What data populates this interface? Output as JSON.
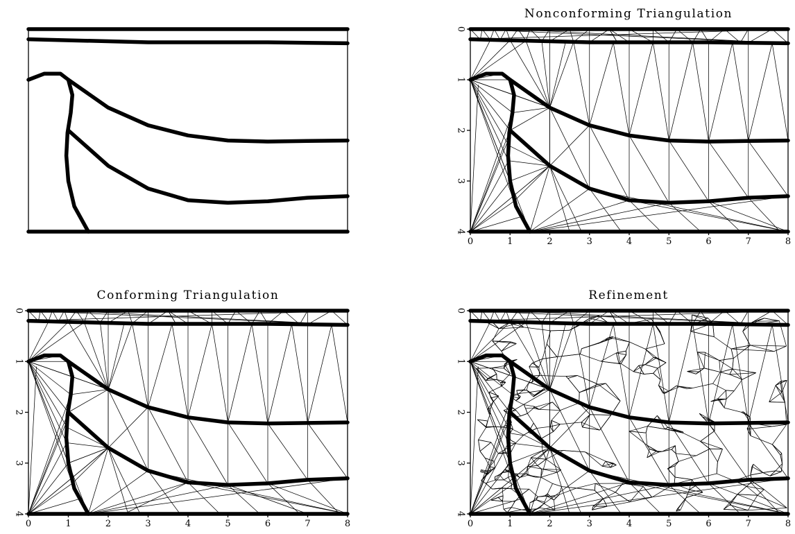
{
  "figure": {
    "panels": [
      {
        "id": "model",
        "title": "",
        "axes": false,
        "mesh": "none"
      },
      {
        "id": "nonconforming",
        "title": "Nonconforming Triangulation",
        "axes": true,
        "mesh": "nonconforming"
      },
      {
        "id": "conforming",
        "title": "Conforming Triangulation",
        "axes": true,
        "mesh": "conforming"
      },
      {
        "id": "refinement",
        "title": "Refinement",
        "axes": true,
        "mesh": "refinement"
      }
    ],
    "x_ticks": [
      "0",
      "1",
      "2",
      "3",
      "4",
      "5",
      "6",
      "7",
      "8"
    ],
    "y_ticks": [
      "0",
      "1",
      "2",
      "3",
      "4"
    ]
  },
  "chart_data": {
    "type": "line",
    "xlim": [
      0,
      8
    ],
    "ylim": [
      4,
      0
    ],
    "x_tick_labels": [
      "0",
      "1",
      "2",
      "3",
      "4",
      "5",
      "6",
      "7",
      "8"
    ],
    "y_tick_labels": [
      "0",
      "1",
      "2",
      "3",
      "4"
    ],
    "series": [
      {
        "x": [
          0,
          8
        ],
        "y": [
          0,
          0
        ]
      },
      {
        "x": [
          0,
          1,
          2,
          3,
          4,
          5,
          6,
          7,
          8
        ],
        "y": [
          0.2,
          0.22,
          0.24,
          0.26,
          0.26,
          0.26,
          0.26,
          0.27,
          0.28
        ]
      },
      {
        "x": [
          0,
          0.4,
          0.8,
          1.0,
          2.0,
          3.0,
          4.0,
          5.0,
          6.0,
          7.0,
          8.0
        ],
        "y": [
          1.0,
          0.88,
          0.88,
          1.0,
          1.55,
          1.9,
          2.1,
          2.2,
          2.22,
          2.21,
          2.2
        ]
      },
      {
        "x": [
          1.0,
          2.0,
          3.0,
          4.0,
          5.0,
          6.0,
          7.0,
          8.0
        ],
        "y": [
          2.0,
          2.7,
          3.15,
          3.38,
          3.43,
          3.4,
          3.33,
          3.3
        ]
      },
      {
        "x": [
          1.0,
          1.1,
          1.06,
          0.98,
          0.95,
          1.0,
          1.15,
          1.5
        ],
        "y": [
          1.0,
          1.3,
          1.65,
          2.05,
          2.5,
          3.0,
          3.5,
          4.0
        ]
      },
      {
        "x": [
          0,
          8
        ],
        "y": [
          4,
          4
        ]
      }
    ]
  }
}
